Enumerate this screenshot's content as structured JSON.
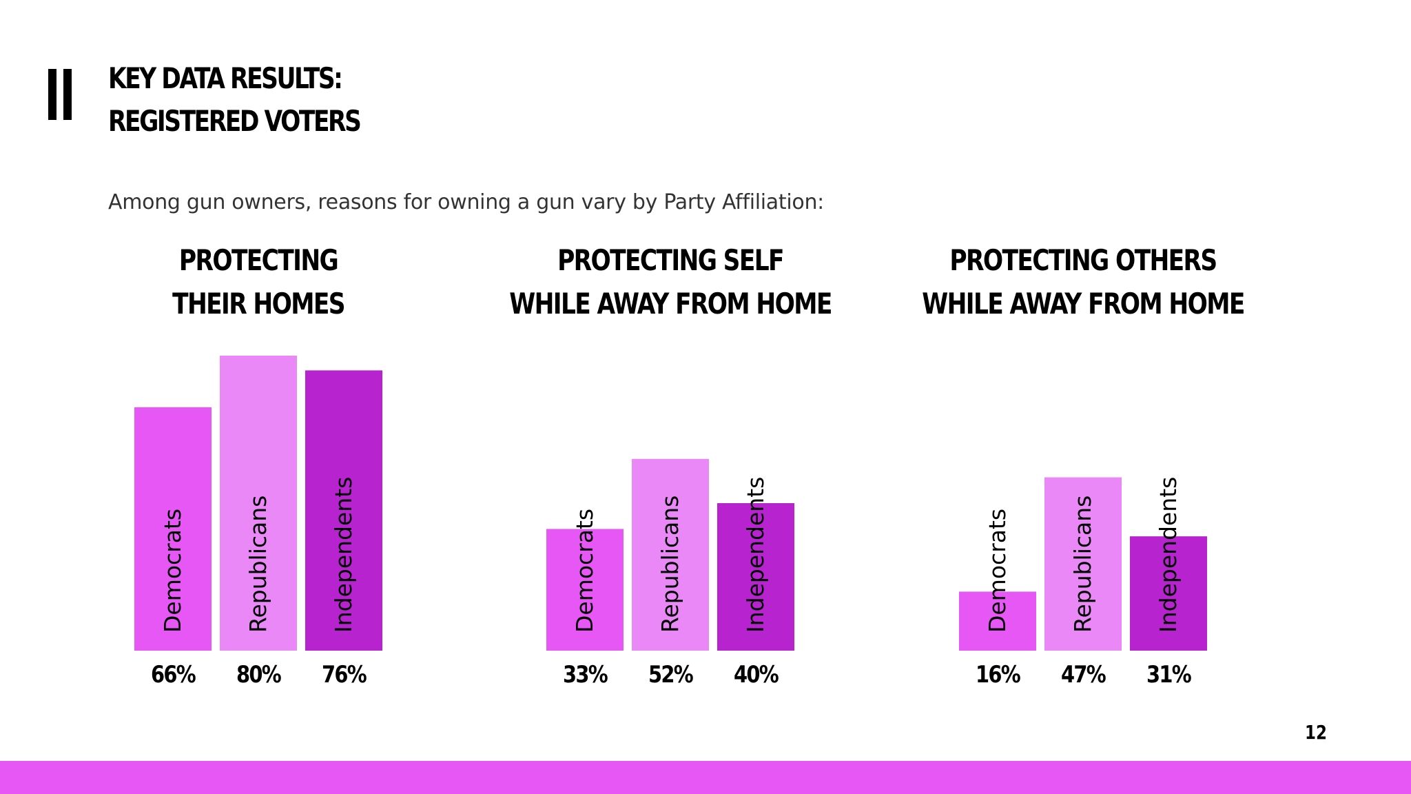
{
  "header": {
    "title_line1": "KEY DATA RESULTS:",
    "title_line2": "REGISTERED VOTERS",
    "section_icon": "double-bar-icon"
  },
  "subtitle": "Among gun owners, reasons for owning a gun vary by Party Affiliation:",
  "page_number": "12",
  "colors": {
    "democrats": "#e757f6",
    "republicans": "#ea88f8",
    "independents": "#b723cf",
    "footer": "#e757f6"
  },
  "chart_data": [
    {
      "type": "bar",
      "title": [
        "PROTECTING",
        "THEIR HOMES"
      ],
      "categories": [
        "Democrats",
        "Republicans",
        "Independents"
      ],
      "values": [
        66,
        80,
        76
      ],
      "value_labels": [
        "66%",
        "80%",
        "76%"
      ]
    },
    {
      "type": "bar",
      "title": [
        "PROTECTING SELF",
        "WHILE AWAY FROM HOME"
      ],
      "categories": [
        "Democrats",
        "Republicans",
        "Independents"
      ],
      "values": [
        33,
        52,
        40
      ],
      "value_labels": [
        "33%",
        "52%",
        "40%"
      ]
    },
    {
      "type": "bar",
      "title": [
        "PROTECTING OTHERS",
        "WHILE AWAY FROM HOME"
      ],
      "categories": [
        "Democrats",
        "Republicans",
        "Independents"
      ],
      "values": [
        16,
        47,
        31
      ],
      "value_labels": [
        "16%",
        "47%",
        "31%"
      ]
    }
  ]
}
